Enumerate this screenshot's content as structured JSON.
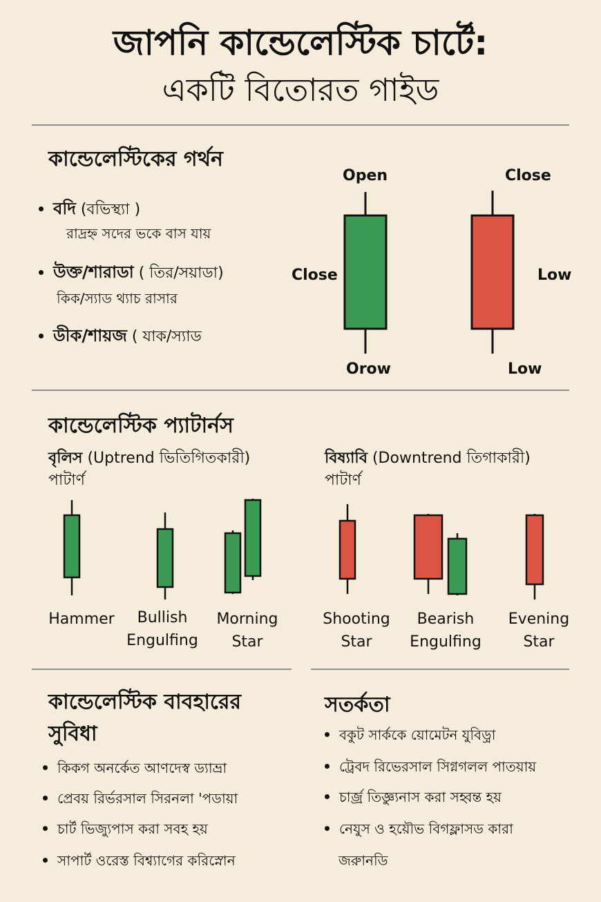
{
  "title": {
    "line1": "জাপনি কান্ডেলেস্টিক চার্টে:",
    "line2": "একটি বিতোরত গাইড"
  },
  "anatomy": {
    "heading": "কান্ডেলেস্টিকের গর্থন",
    "items": [
      {
        "bold": "বদি",
        "rest": " (বভিস্থ্যা )",
        "sub": "রাদ্রহ্ন সদের ভকে বাস যায়"
      },
      {
        "bold": "উক্ত/শারাডা",
        "rest": " ( তির/সয়াডা)",
        "sub": "কিক/স্যাড থ্যাচ রাসার"
      },
      {
        "bold": "ডীক/শায়জ",
        "rest": " ( যাক/স্যাড",
        "sub": ""
      }
    ],
    "labels": {
      "open": "Open",
      "close_left": "Close",
      "orow": "Orow",
      "close_right": "Close",
      "low_mid": "Low",
      "low_bottom": "Low"
    },
    "colors": {
      "bull": "#3a9a52",
      "bear": "#dc5443"
    }
  },
  "patterns": {
    "heading": "কান্ডেলেস্টিক প্যাটার্নস",
    "bullish": {
      "head_bold": "বৃলিস",
      "head_rest": " (Uptrend ভিতিগিতকারী)",
      "head_line2": "পাটার্ণ",
      "items": [
        {
          "line1": "Hammer",
          "line2": ""
        },
        {
          "line1": "Bullish",
          "line2": "Engulfing"
        },
        {
          "line1": "Morning",
          "line2": "Star"
        }
      ]
    },
    "bearish": {
      "head_bold": "বিষ্যাবি",
      "head_rest": " (Downtrend তিগাকারী)",
      "head_line2": "পাটার্ণ",
      "items": [
        {
          "line1": "Shooting",
          "line2": "Star"
        },
        {
          "line1": "Bearish",
          "line2": "Engulfing"
        },
        {
          "line1": "Evening",
          "line2": "Star"
        }
      ]
    }
  },
  "benefits": {
    "heading_line1": "কান্ডেলেস্টিক বাবহারের",
    "heading_line2": "সুবিধা",
    "items": [
      "কিকগ অনর্কেত আণদেস্ব ড্যাভ্রা",
      "প্রেবয় রির্ভরসাল সিরনলা 'পডায়া",
      "চার্ট ভিজ্যুপাস করা সবহ হয়",
      "সাপার্ট ওরেস্ত বিশ্ব্যাগের করিস্নোন"
    ]
  },
  "caution": {
    "heading": "সতর্কতা",
    "items": [
      "বকুট সার্ককে য়োমেটন যুবিড়্রা",
      "ট্রেবদ রিভেরসাল সিগ্নগলল পাতয়ায়",
      "চার্জ্র তিজ্ঞ্যুনাস করা সহ্বন্ত হয়",
      "নেযুস ও হয়ৌভ বিগফ্লাসড কারা",
      "জরুানডি"
    ]
  }
}
